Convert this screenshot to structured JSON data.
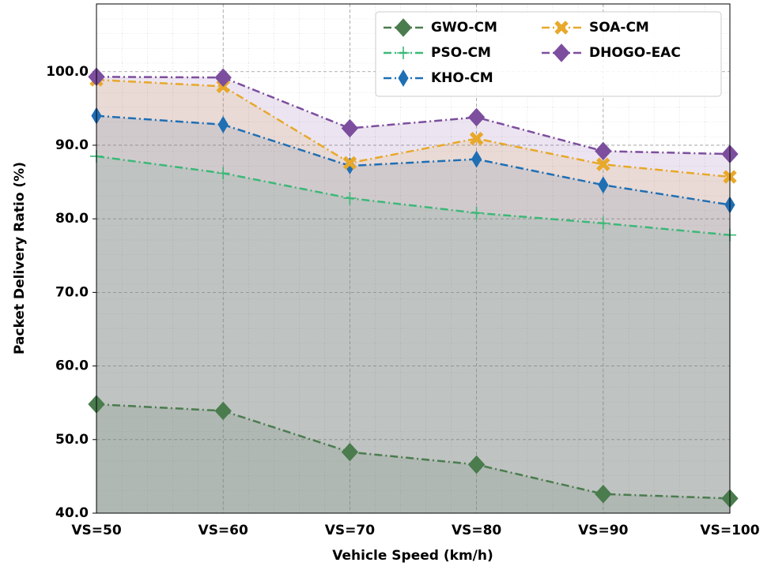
{
  "chart_data": {
    "type": "line",
    "x_label": "Vehicle Speed (km/h)",
    "y_label": "Packet Delivery Ratio (%)",
    "categories": [
      "VS=50",
      "VS=60",
      "VS=70",
      "VS=80",
      "VS=90",
      "VS=100"
    ],
    "series": [
      {
        "name": "GWO-CM",
        "color": "#4a7c4e",
        "marker": "diamond",
        "values": [
          54.8,
          53.9,
          48.3,
          46.6,
          42.6,
          42.0
        ]
      },
      {
        "name": "PSO-CM",
        "color": "#3cb878",
        "marker": "plus",
        "values": [
          88.5,
          86.2,
          82.8,
          80.8,
          79.4,
          77.8
        ]
      },
      {
        "name": "KHO-CM",
        "color": "#1f6fb4",
        "marker": "thin_diamond",
        "values": [
          94.0,
          92.8,
          87.2,
          88.1,
          84.6,
          81.9
        ]
      },
      {
        "name": "SOA-CM",
        "color": "#e8a82a",
        "marker": "x",
        "values": [
          98.9,
          98.0,
          87.6,
          90.9,
          87.4,
          85.7
        ]
      },
      {
        "name": "DHOGO-EAC",
        "color": "#7d4e9e",
        "marker": "diamond",
        "values": [
          99.3,
          99.2,
          92.3,
          93.8,
          89.2,
          88.8
        ]
      }
    ],
    "ylim": [
      40,
      109.2
    ],
    "yticks": [
      {
        "value": 40,
        "label": "40.0"
      },
      {
        "value": 50,
        "label": "50.0"
      },
      {
        "value": 60,
        "label": "60.0"
      },
      {
        "value": 70,
        "label": "70.0"
      },
      {
        "value": 80,
        "label": "80.0"
      },
      {
        "value": 90,
        "label": "90.0"
      },
      {
        "value": 100,
        "label": "100.0"
      }
    ],
    "grid": true,
    "fill_under": true,
    "legend": "upper right"
  }
}
